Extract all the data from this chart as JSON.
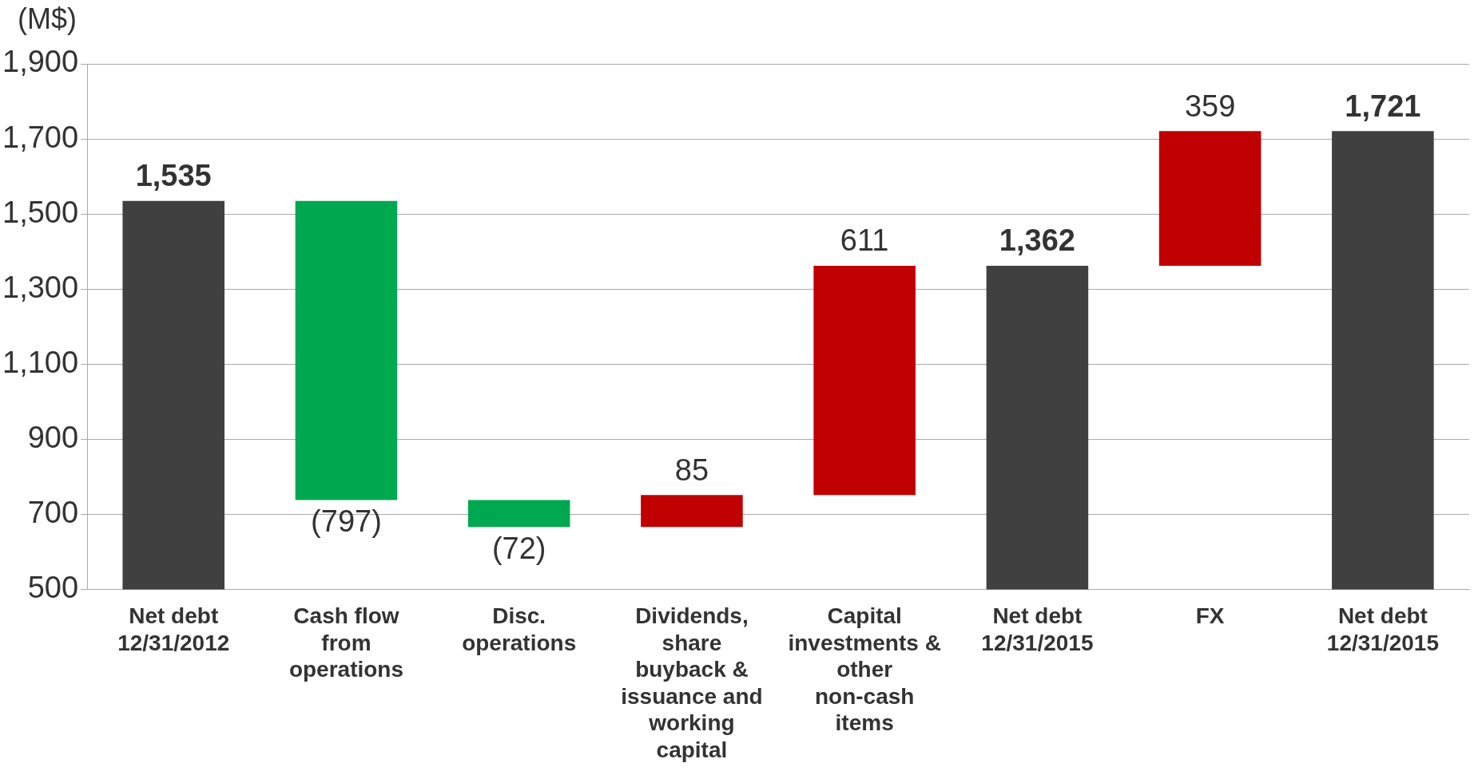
{
  "chart_data": {
    "type": "bar",
    "ylabel": "(M$)",
    "categories": [
      "Net debt 12/31/2012",
      "Cash flow from operations",
      "Disc. operations",
      "Dividends, share buyback & issuance and working capital",
      "Capital investments & other non-cash items",
      "Net debt 12/31/2015",
      "FX",
      "Net debt 12/31/2015"
    ],
    "values": [
      1535,
      -797,
      -72,
      85,
      611,
      1362,
      359,
      1721
    ],
    "base": [
      null,
      1535,
      738,
      666,
      751,
      null,
      1362,
      null
    ],
    "colors": [
      "#404040",
      "#00a84f",
      "#00a84f",
      "#c00000",
      "#c00000",
      "#404040",
      "#c00000",
      "#404040"
    ],
    "value_labels": [
      "1,535",
      "(797)",
      "(72)",
      "85",
      "611",
      "1,362",
      "359",
      "1,721"
    ],
    "ylim": [
      500,
      1900
    ],
    "yticks": [
      {
        "value": 500,
        "label": "500"
      },
      {
        "value": 700,
        "label": "700"
      },
      {
        "value": 900,
        "label": "900"
      },
      {
        "value": 1100,
        "label": "1,100"
      },
      {
        "value": 1300,
        "label": "1,300"
      },
      {
        "value": 1500,
        "label": "1,500"
      },
      {
        "value": 1700,
        "label": "1,700"
      },
      {
        "value": 1900,
        "label": "1,900"
      }
    ],
    "grid": "y",
    "legend": false
  }
}
